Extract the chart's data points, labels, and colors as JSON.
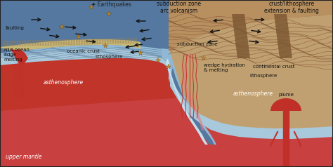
{
  "labels": {
    "earthquakes": "Earthquakes",
    "subduction_zone_arc": "subduction zone\narc volcanism",
    "crust_lithosphere": "crust/lithosphere\nextension & faulting",
    "faulting": "faulting",
    "oceanic_crust": "oceanic crust",
    "lithosphere_left": "lithosphere",
    "lithosphere_right": "lithosphere",
    "mid_ocean": "mid-ocean\nridge\nmelting",
    "asthenosphere_left": "asthenosphere",
    "asthenosphere_right": "asthenosphere",
    "upper_mantle": "upper mantle",
    "subduction_zone": "subduction zone",
    "continental_crust": "continental crust",
    "wedge": "wedge hydration\n& melting",
    "plume": "plume"
  },
  "colors": {
    "mantle_red": "#c0342a",
    "asth_red": "#b5302a",
    "ocean_blue_dark": "#5578a0",
    "ocean_blue_mid": "#6e9bbf",
    "ocean_blue_light": "#90b8d4",
    "litho_blue": "#a8c8dc",
    "cont_brown_dark": "#8a6540",
    "cont_brown_mid": "#a07850",
    "cont_brown_light": "#c0a070",
    "cont_surface": "#b89870",
    "sediment_tan": "#c8b878",
    "subduct_channel": "#c8e0ec",
    "volcano_red": "#c03028",
    "border": "#222222",
    "text_dark": "#111111",
    "text_white": "#ffffff",
    "arrow": "#111111",
    "eq_star": "#d09020",
    "fault_brown": "#604020"
  },
  "figsize": [
    4.74,
    2.38
  ],
  "dpi": 100
}
